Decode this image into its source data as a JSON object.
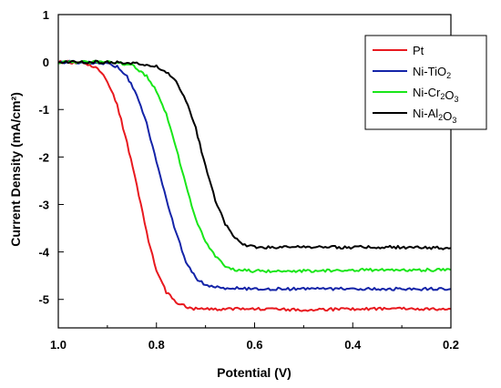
{
  "chart_data": {
    "type": "line",
    "xlabel": "Potential (V)",
    "ylabel": "Current Density (mA/cm²)",
    "xlim": [
      1.0,
      0.2
    ],
    "ylim": [
      -5.6,
      1
    ],
    "x_ticks": [
      "1.0",
      "0.8",
      "0.6",
      "0.4",
      "0.2"
    ],
    "y_ticks": [
      "1",
      "0",
      "-1",
      "-2",
      "-3",
      "-4",
      "-5"
    ],
    "legend_position": "top-right",
    "series": [
      {
        "name": "Pt",
        "color": "#e8191f",
        "points": [
          [
            1.0,
            0.0
          ],
          [
            0.98,
            0.0
          ],
          [
            0.96,
            -0.02
          ],
          [
            0.94,
            -0.05
          ],
          [
            0.92,
            -0.15
          ],
          [
            0.9,
            -0.4
          ],
          [
            0.88,
            -0.9
          ],
          [
            0.86,
            -1.7
          ],
          [
            0.84,
            -2.6
          ],
          [
            0.82,
            -3.6
          ],
          [
            0.8,
            -4.4
          ],
          [
            0.78,
            -4.85
          ],
          [
            0.76,
            -5.05
          ],
          [
            0.74,
            -5.15
          ],
          [
            0.72,
            -5.2
          ],
          [
            0.7,
            -5.2
          ],
          [
            0.6,
            -5.2
          ],
          [
            0.5,
            -5.22
          ],
          [
            0.4,
            -5.2
          ],
          [
            0.3,
            -5.2
          ],
          [
            0.2,
            -5.2
          ]
        ]
      },
      {
        "name": "Ni-TiO2",
        "color": "#1424a8",
        "points": [
          [
            1.0,
            0.0
          ],
          [
            0.95,
            0.0
          ],
          [
            0.9,
            -0.02
          ],
          [
            0.88,
            -0.1
          ],
          [
            0.86,
            -0.3
          ],
          [
            0.84,
            -0.7
          ],
          [
            0.82,
            -1.3
          ],
          [
            0.8,
            -2.1
          ],
          [
            0.78,
            -2.9
          ],
          [
            0.76,
            -3.6
          ],
          [
            0.74,
            -4.2
          ],
          [
            0.72,
            -4.55
          ],
          [
            0.7,
            -4.7
          ],
          [
            0.68,
            -4.75
          ],
          [
            0.6,
            -4.78
          ],
          [
            0.5,
            -4.78
          ],
          [
            0.4,
            -4.78
          ],
          [
            0.3,
            -4.78
          ],
          [
            0.2,
            -4.78
          ]
        ]
      },
      {
        "name": "Ni-Cr2O3",
        "color": "#19e619",
        "points": [
          [
            1.0,
            0.0
          ],
          [
            0.9,
            0.0
          ],
          [
            0.85,
            -0.05
          ],
          [
            0.82,
            -0.3
          ],
          [
            0.8,
            -0.6
          ],
          [
            0.78,
            -1.1
          ],
          [
            0.76,
            -1.8
          ],
          [
            0.74,
            -2.6
          ],
          [
            0.72,
            -3.3
          ],
          [
            0.7,
            -3.8
          ],
          [
            0.68,
            -4.1
          ],
          [
            0.66,
            -4.3
          ],
          [
            0.64,
            -4.38
          ],
          [
            0.6,
            -4.4
          ],
          [
            0.5,
            -4.4
          ],
          [
            0.4,
            -4.38
          ],
          [
            0.3,
            -4.38
          ],
          [
            0.2,
            -4.38
          ]
        ]
      },
      {
        "name": "Ni-Al2O3",
        "color": "#000000",
        "points": [
          [
            1.0,
            0.0
          ],
          [
            0.9,
            0.0
          ],
          [
            0.84,
            -0.02
          ],
          [
            0.8,
            -0.1
          ],
          [
            0.78,
            -0.2
          ],
          [
            0.76,
            -0.4
          ],
          [
            0.74,
            -0.8
          ],
          [
            0.72,
            -1.4
          ],
          [
            0.7,
            -2.2
          ],
          [
            0.68,
            -2.9
          ],
          [
            0.66,
            -3.4
          ],
          [
            0.64,
            -3.7
          ],
          [
            0.62,
            -3.85
          ],
          [
            0.6,
            -3.9
          ],
          [
            0.5,
            -3.9
          ],
          [
            0.4,
            -3.9
          ],
          [
            0.3,
            -3.9
          ],
          [
            0.2,
            -3.92
          ]
        ]
      }
    ]
  }
}
